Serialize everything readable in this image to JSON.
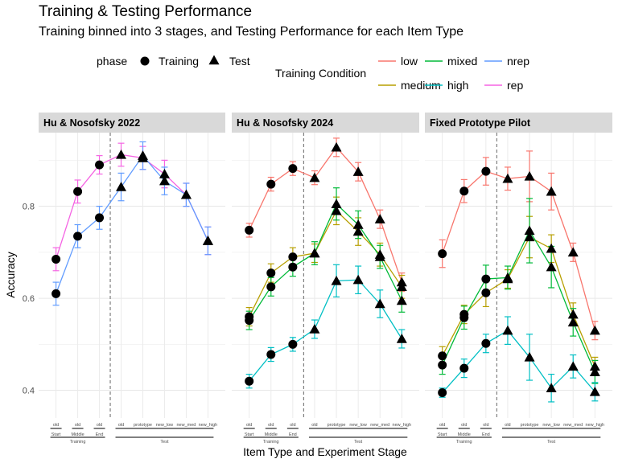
{
  "title": "Training & Testing Performance",
  "subtitle": "Training binned into 3 stages, and Testing Performance for each Item Type",
  "legend": {
    "phase_title": "phase",
    "phase_items": [
      {
        "shape": "circle",
        "label": "Training"
      },
      {
        "shape": "triangle",
        "label": "Test"
      }
    ],
    "condition_title": "Training Condition",
    "condition_items": [
      {
        "key": "low",
        "label": "low",
        "color": "#F8766D"
      },
      {
        "key": "mixed",
        "label": "mixed",
        "color": "#00BA38"
      },
      {
        "key": "nrep",
        "label": "nrep",
        "color": "#619CFF"
      },
      {
        "key": "medium",
        "label": "medium",
        "color": "#B79F00"
      },
      {
        "key": "high",
        "label": "high",
        "color": "#00BFC4"
      },
      {
        "key": "rep",
        "label": "rep",
        "color": "#F564E3"
      }
    ]
  },
  "chart_data": {
    "type": "line",
    "ylabel": "Accuracy",
    "xlabel": "Item Type and Experiment Stage",
    "ylim": [
      0.34,
      0.96
    ],
    "yticks": [
      0.4,
      0.6,
      0.8
    ],
    "categories": [
      "old",
      "old",
      "old",
      "old",
      "prototype",
      "new_low",
      "new_med",
      "new_high"
    ],
    "stage_labels": [
      "Start",
      "Middle",
      "End"
    ],
    "phase_labels": [
      "Training",
      "Test"
    ],
    "grid": true,
    "legend_position": "top",
    "panels": [
      {
        "title": "Hu & Nosofsky 2022",
        "series": [
          {
            "name": "rep",
            "values": [
              0.685,
              0.832,
              0.89,
              0.912,
              0.905,
              0.87,
              0.825,
              0.725
            ],
            "errors": [
              0.025,
              0.025,
              0.02,
              0.025,
              0.025,
              0.03,
              0.025,
              0.03
            ]
          },
          {
            "name": "nrep",
            "values": [
              0.61,
              0.735,
              0.775,
              0.842,
              0.91,
              0.855,
              0.825,
              0.725
            ],
            "errors": [
              0.025,
              0.025,
              0.025,
              0.03,
              0.03,
              0.03,
              0.025,
              0.03
            ]
          }
        ]
      },
      {
        "title": "Hu & Nosofsky 2024",
        "series": [
          {
            "name": "low",
            "values": [
              0.748,
              0.848,
              0.882,
              0.862,
              0.928,
              0.875,
              0.772,
              0.635
            ],
            "errors": [
              0.015,
              0.015,
              0.015,
              0.015,
              0.02,
              0.02,
              0.02,
              0.02
            ]
          },
          {
            "name": "medium",
            "values": [
              0.56,
              0.655,
              0.69,
              0.698,
              0.79,
              0.745,
              0.695,
              0.625
            ],
            "errors": [
              0.02,
              0.02,
              0.02,
              0.02,
              0.03,
              0.03,
              0.025,
              0.025
            ]
          },
          {
            "name": "mixed",
            "values": [
              0.552,
              0.625,
              0.668,
              0.698,
              0.805,
              0.76,
              0.69,
              0.595
            ],
            "errors": [
              0.02,
              0.02,
              0.02,
              0.025,
              0.035,
              0.03,
              0.025,
              0.025
            ]
          },
          {
            "name": "high",
            "values": [
              0.42,
              0.478,
              0.5,
              0.533,
              0.638,
              0.64,
              0.588,
              0.512
            ],
            "errors": [
              0.015,
              0.015,
              0.015,
              0.02,
              0.035,
              0.03,
              0.03,
              0.02
            ]
          }
        ]
      },
      {
        "title": "Fixed Prototype Pilot",
        "series": [
          {
            "name": "low",
            "values": [
              0.697,
              0.833,
              0.876,
              0.86,
              0.865,
              0.832,
              0.7,
              0.53
            ],
            "errors": [
              0.03,
              0.025,
              0.03,
              0.025,
              0.055,
              0.04,
              0.02,
              0.02
            ]
          },
          {
            "name": "medium",
            "values": [
              0.475,
              0.565,
              0.612,
              0.642,
              0.733,
              0.708,
              0.565,
              0.452
            ],
            "errors": [
              0.02,
              0.02,
              0.03,
              0.02,
              0.045,
              0.03,
              0.025,
              0.02
            ]
          },
          {
            "name": "mixed",
            "values": [
              0.455,
              0.558,
              0.642,
              0.645,
              0.747,
              0.668,
              0.548,
              0.44
            ],
            "errors": [
              0.02,
              0.025,
              0.03,
              0.025,
              0.07,
              0.045,
              0.03,
              0.025
            ]
          },
          {
            "name": "high",
            "values": [
              0.395,
              0.448,
              0.502,
              0.53,
              0.472,
              0.405,
              0.452,
              0.397
            ],
            "errors": [
              0.01,
              0.02,
              0.02,
              0.03,
              0.05,
              0.03,
              0.025,
              0.02
            ]
          }
        ]
      }
    ]
  }
}
